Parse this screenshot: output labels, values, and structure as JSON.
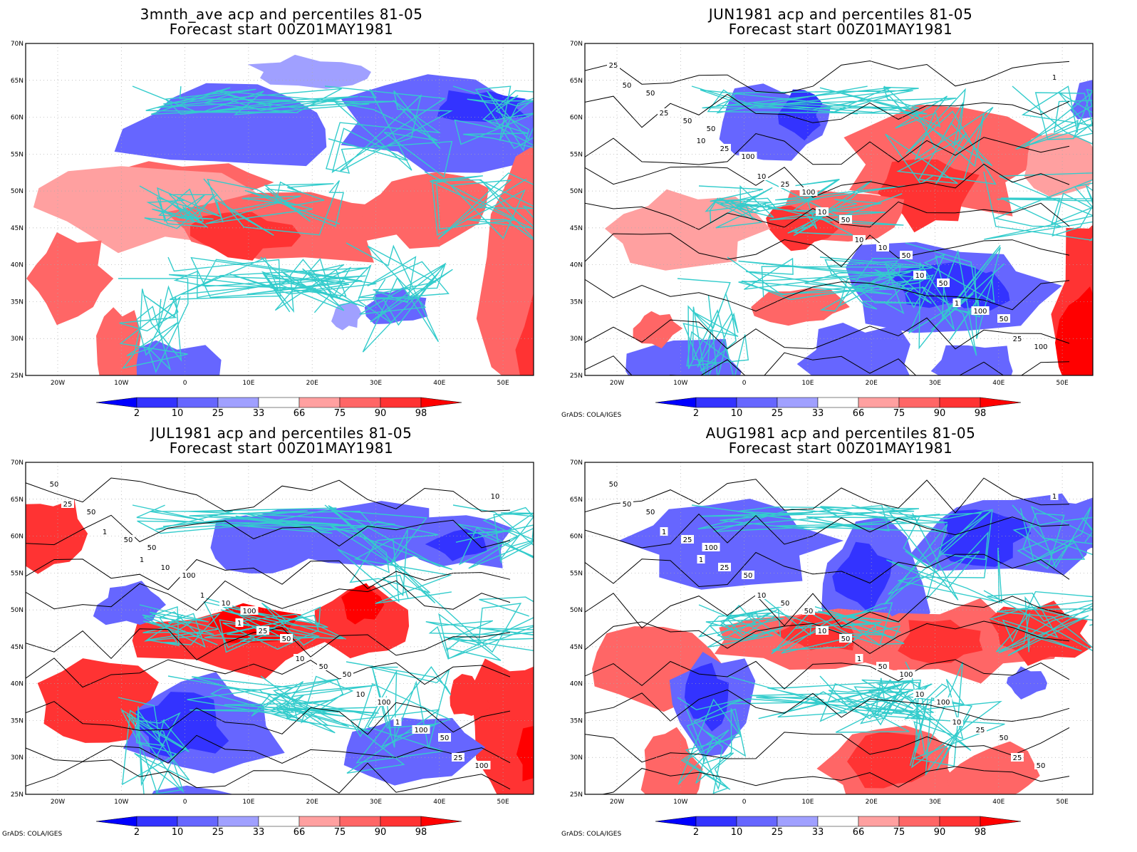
{
  "panels": [
    {
      "title1": "3mnth_ave acp and percentiles 81-05",
      "title2": "Forecast start 00Z01MAY1981",
      "credit": "",
      "contour_labels": []
    },
    {
      "title1": "JUN1981 acp and percentiles 81-05",
      "title2": "Forecast start 00Z01MAY1981",
      "credit": "GrADS: COLA/IGES",
      "contour_labels": [
        "25",
        "50",
        "100",
        "50",
        "50",
        "50",
        "100",
        "50",
        "50",
        "100",
        "50",
        "25",
        "10",
        "100",
        "50",
        "25",
        "10",
        "10",
        "25",
        "25",
        "10",
        "10",
        "1",
        "1",
        "10"
      ]
    },
    {
      "title1": "JUL1981 acp and percentiles 81-05",
      "title2": "Forecast start 00Z01MAY1981",
      "credit": "GrADS: COLA/IGES",
      "contour_labels": [
        "50",
        "50",
        "100",
        "50",
        "50",
        "50",
        "100",
        "50",
        "100",
        "100",
        "50",
        "10",
        "50",
        "100",
        "25",
        "10",
        "25",
        "10",
        "25",
        "1",
        "1",
        "10",
        "1",
        "10",
        "1",
        "1"
      ]
    },
    {
      "title1": "AUG1981 acp and percentiles 81-05",
      "title2": "Forecast start 00Z01MAY1981",
      "credit": "GrADS: COLA/IGES",
      "contour_labels": [
        "50",
        "100",
        "50",
        "100",
        "50",
        "50",
        "50",
        "50",
        "100",
        "50",
        "25",
        "50",
        "50",
        "25",
        "50",
        "25",
        "10",
        "10",
        "25",
        "1",
        "10",
        "1",
        "10",
        "1",
        "1"
      ]
    }
  ],
  "axes": {
    "lat_labels": [
      "70N",
      "65N",
      "60N",
      "55N",
      "50N",
      "45N",
      "40N",
      "35N",
      "30N",
      "25N"
    ],
    "lon_labels": [
      "20W",
      "10W",
      "0",
      "10E",
      "20E",
      "30E",
      "40E",
      "50E"
    ]
  },
  "colorbar": {
    "labels": [
      "2",
      "10",
      "25",
      "33",
      "66",
      "75",
      "90",
      "98"
    ],
    "colors": [
      "#0000ff",
      "#3333ff",
      "#6666ff",
      "#a0a0ff",
      "#ffffff",
      "#ffa0a0",
      "#ff6666",
      "#ff3333",
      "#ff0000"
    ]
  },
  "colors": {
    "coastline": "#33cccc",
    "contour": "#000000",
    "grid": "#aaaaaa"
  }
}
